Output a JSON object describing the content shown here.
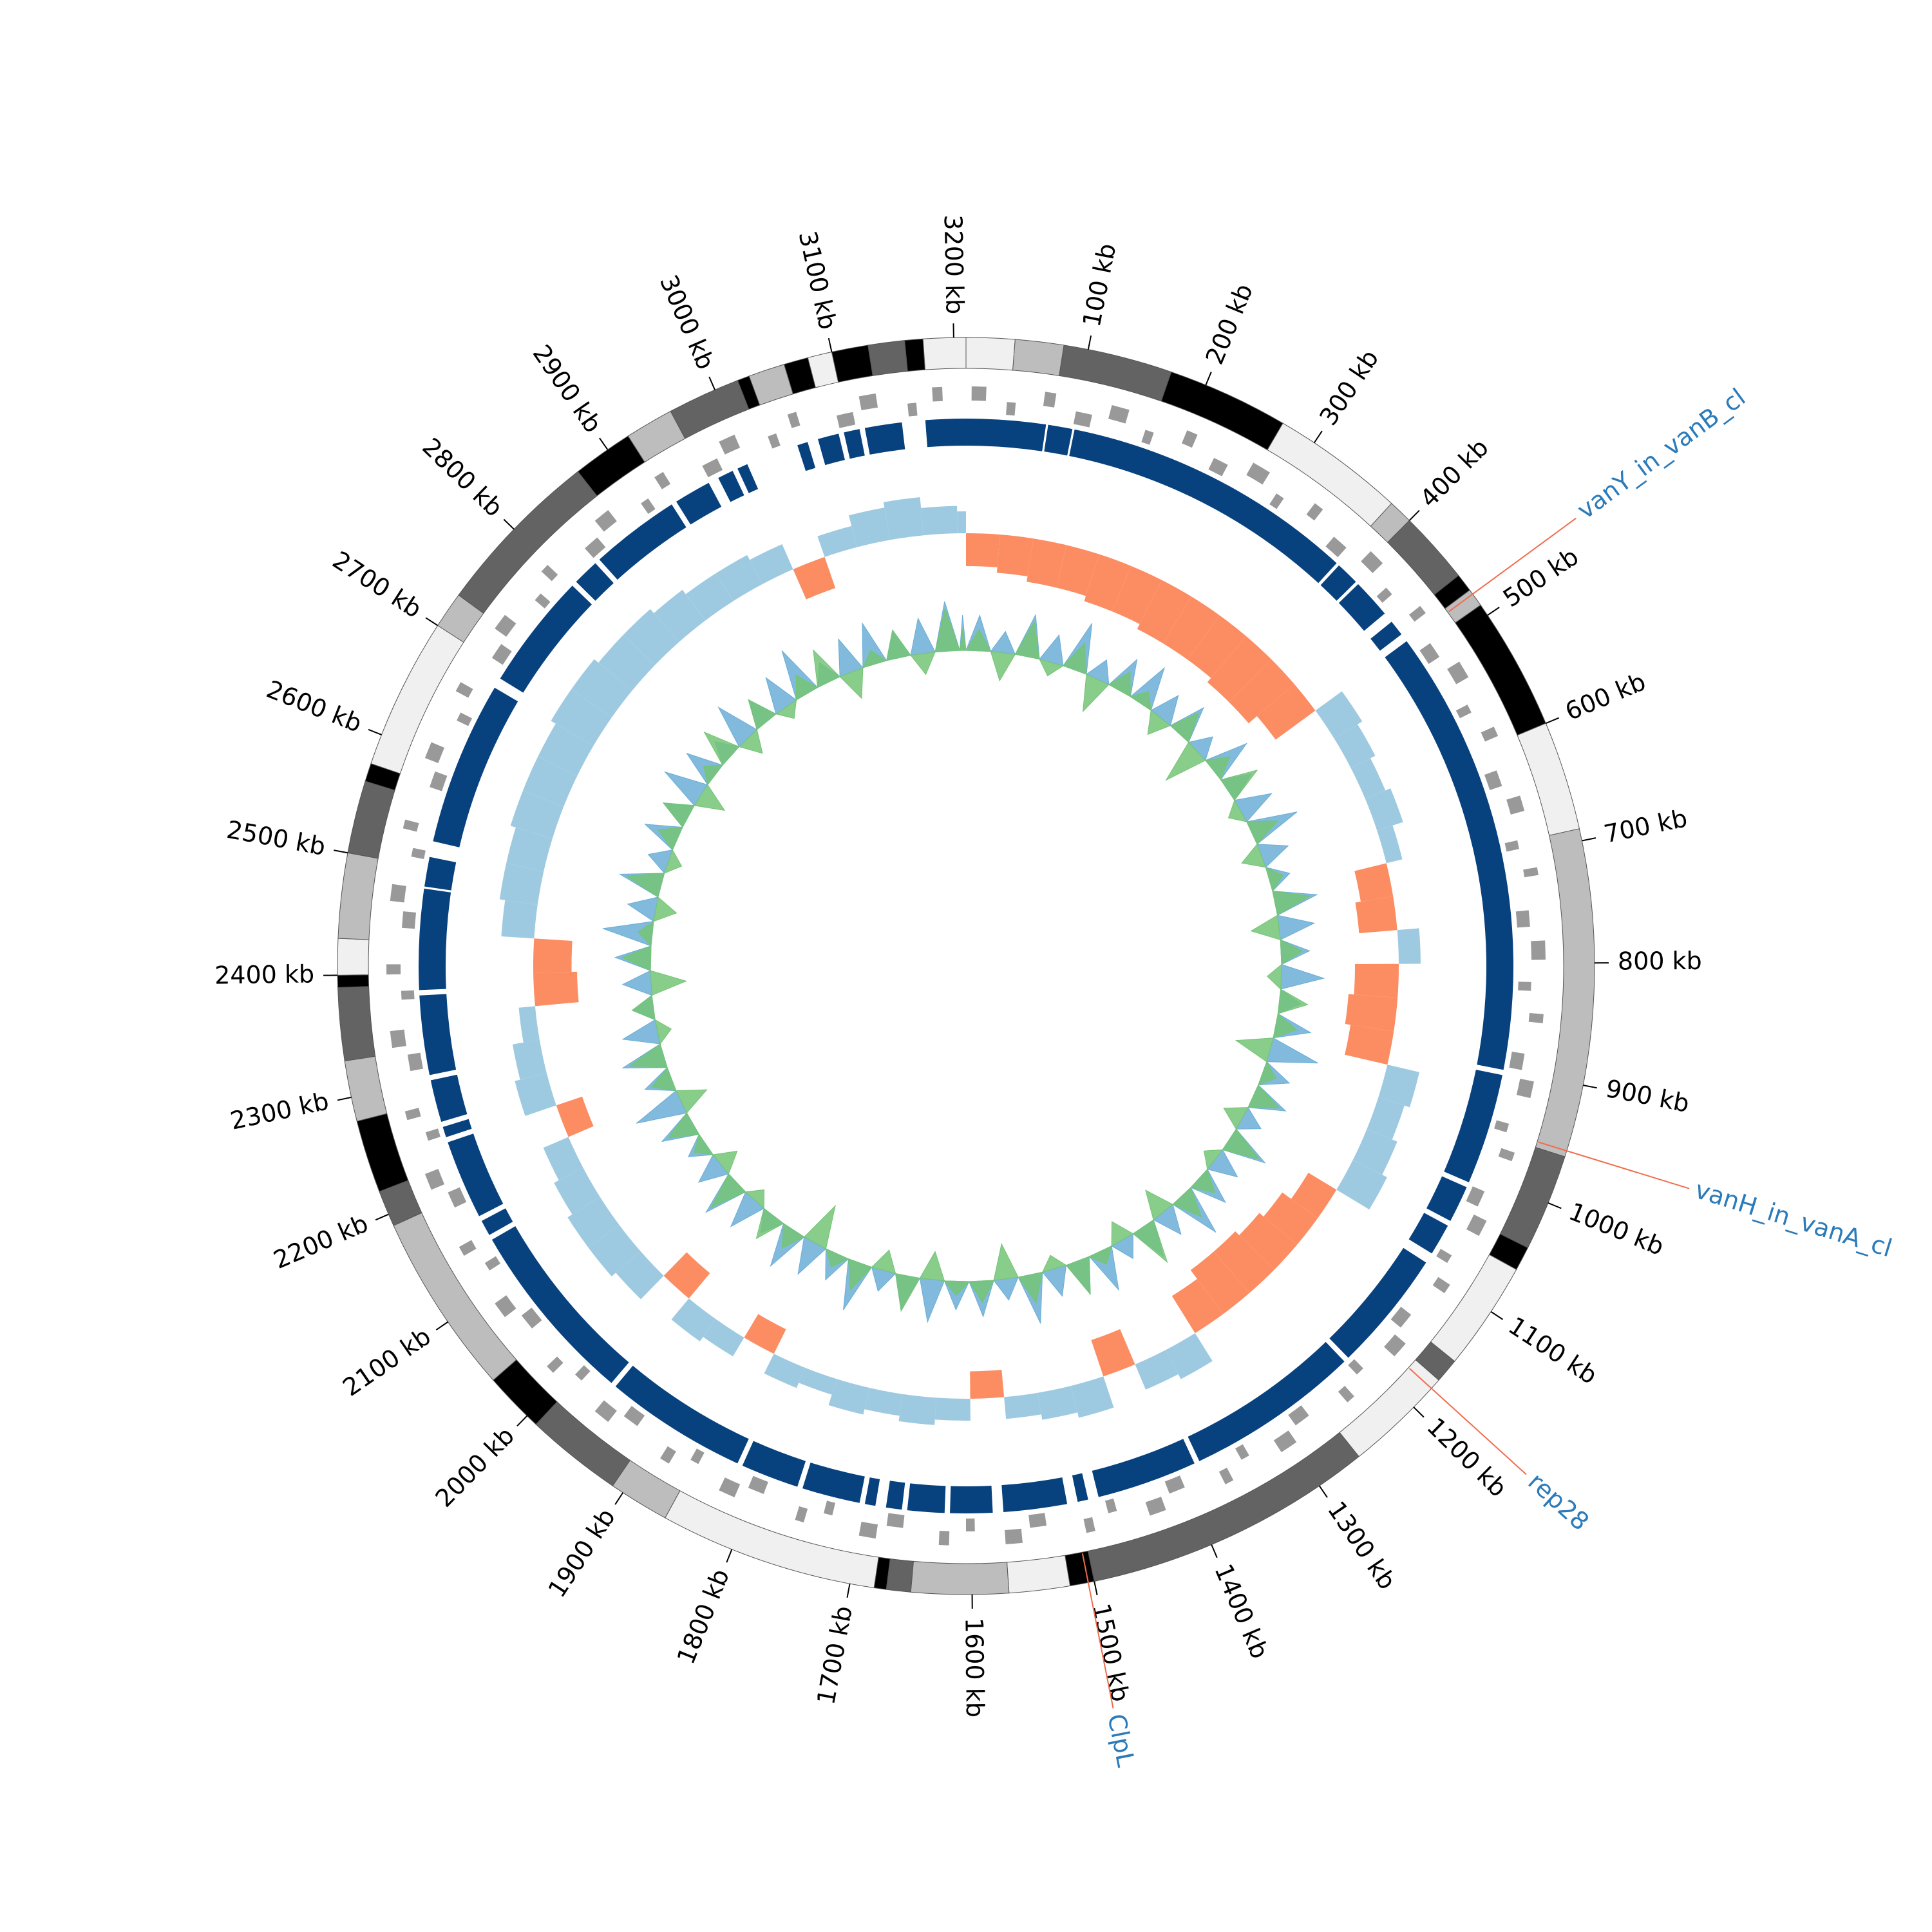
{
  "chart_data": {
    "type": "circular-genome",
    "xlim": [
      0,
      3210
    ],
    "xticks": [
      {
        "value": 100,
        "label": "100 kb"
      },
      {
        "value": 200,
        "label": "200 kb"
      },
      {
        "value": 300,
        "label": "300 kb"
      },
      {
        "value": 400,
        "label": "400 kb"
      },
      {
        "value": 500,
        "label": "500 kb"
      },
      {
        "value": 600,
        "label": "600 kb"
      },
      {
        "value": 700,
        "label": "700 kb"
      },
      {
        "value": 800,
        "label": "800 kb"
      },
      {
        "value": 900,
        "label": "900 kb"
      },
      {
        "value": 1000,
        "label": "1000 kb"
      },
      {
        "value": 1100,
        "label": "1100 kb"
      },
      {
        "value": 1200,
        "label": "1200 kb"
      },
      {
        "value": 1300,
        "label": "1300 kb"
      },
      {
        "value": 1400,
        "label": "1400 kb"
      },
      {
        "value": 1500,
        "label": "1500 kb"
      },
      {
        "value": 1600,
        "label": "1600 kb"
      },
      {
        "value": 1700,
        "label": "1700 kb"
      },
      {
        "value": 1800,
        "label": "1800 kb"
      },
      {
        "value": 1900,
        "label": "1900 kb"
      },
      {
        "value": 2000,
        "label": "2000 kb"
      },
      {
        "value": 2100,
        "label": "2100 kb"
      },
      {
        "value": 2200,
        "label": "2200 kb"
      },
      {
        "value": 2300,
        "label": "2300 kb"
      },
      {
        "value": 2400,
        "label": "2400 kb"
      },
      {
        "value": 2500,
        "label": "2500 kb"
      },
      {
        "value": 2600,
        "label": "2600 kb"
      },
      {
        "value": 2700,
        "label": "2700 kb"
      },
      {
        "value": 2800,
        "label": "2800 kb"
      },
      {
        "value": 2900,
        "label": "2900 kb"
      },
      {
        "value": 3000,
        "label": "3000 kb"
      },
      {
        "value": 3100,
        "label": "3100 kb"
      },
      {
        "value": 3200,
        "label": "3200 kb"
      }
    ],
    "bands": {
      "starts": [
        0,
        40,
        80,
        170,
        270,
        380,
        400,
        460,
        475,
        490,
        600,
        690,
        960,
        1040,
        1060,
        1150,
        1170,
        1260,
        1500,
        1520,
        1570,
        1650,
        1670,
        1680,
        1860,
        1910,
        1990,
        2040,
        2190,
        2220,
        2280,
        2330,
        2390,
        2400,
        2430,
        2500,
        2560,
        2575,
        2700,
        2730,
        2870,
        2920,
        2960,
        3020,
        3030,
        3060,
        3080,
        3100,
        3130,
        3160,
        3175
      ],
      "ends": [
        40,
        80,
        170,
        270,
        380,
        400,
        460,
        475,
        490,
        600,
        690,
        960,
        1040,
        1060,
        1150,
        1170,
        1260,
        1500,
        1520,
        1570,
        1650,
        1670,
        1680,
        1860,
        1910,
        1990,
        2040,
        2190,
        2220,
        2280,
        2330,
        2390,
        2400,
        2430,
        2500,
        2560,
        2575,
        2700,
        2730,
        2870,
        2920,
        2960,
        3020,
        3030,
        3060,
        3080,
        3100,
        3130,
        3160,
        3175,
        3210
      ],
      "colors": [
        "#f0f0f0",
        "#bdbdbd",
        "#636363",
        "#000000",
        "#f0f0f0",
        "#bdbdbd",
        "#636363",
        "#000000",
        "#bdbdbd",
        "#000000",
        "#f0f0f0",
        "#bdbdbd",
        "#636363",
        "#000000",
        "#f0f0f0",
        "#636363",
        "#f0f0f0",
        "#636363",
        "#000000",
        "#f0f0f0",
        "#bdbdbd",
        "#636363",
        "#000000",
        "#f0f0f0",
        "#bdbdbd",
        "#636363",
        "#000000",
        "#bdbdbd",
        "#636363",
        "#000000",
        "#bdbdbd",
        "#636363",
        "#000000",
        "#f0f0f0",
        "#bdbdbd",
        "#636363",
        "#000000",
        "#f0f0f0",
        "#bdbdbd",
        "#636363",
        "#000000",
        "#bdbdbd",
        "#636363",
        "#000000",
        "#bdbdbd",
        "#000000",
        "#f0f0f0",
        "#000000",
        "#636363",
        "#000000",
        "#f0f0f0"
      ]
    },
    "genes_forward": {
      "starts": [
        5,
        70,
        130,
        200,
        265,
        330,
        395,
        460,
        520,
        585,
        650,
        715,
        780,
        845,
        905,
        970,
        1035,
        1100,
        1165,
        1230,
        1295,
        1360,
        1425,
        1490,
        1555,
        1620,
        1685,
        1750,
        1815,
        1880,
        1945,
        2010,
        2075,
        2140,
        2205,
        2270,
        2335,
        2400,
        2465,
        2530,
        2595,
        2660,
        2725,
        2790,
        2855,
        2920,
        2985,
        3050,
        3115,
        3180
      ],
      "ends": [
        18,
        80,
        146,
        210,
        282,
        339,
        410,
        468,
        536,
        594,
        664,
        722,
        797,
        853,
        920,
        978,
        1050,
        1109,
        1180,
        1238,
        1311,
        1368,
        1440,
        1498,
        1570,
        1629,
        1700,
        1758,
        1830,
        1889,
        1960,
        2018,
        2090,
        2149,
        2220,
        2278,
        2350,
        2409,
        2480,
        2538,
        2610,
        2669,
        2740,
        2798,
        2870,
        2929,
        3000,
        3058,
        3130,
        3189
      ],
      "color": "#999999"
    },
    "genes_reverse": {
      "starts": [
        37,
        100,
        165,
        232,
        297,
        362,
        428,
        492,
        557,
        622,
        688,
        752,
        817,
        882,
        947,
        1012,
        1077,
        1142,
        1207,
        1272,
        1337,
        1402,
        1467,
        1532,
        1597,
        1662,
        1727,
        1792,
        1857,
        1922,
        1987,
        2052,
        2117,
        2182,
        2247,
        2312,
        2377,
        2442,
        2507,
        2572,
        2637,
        2702,
        2767,
        2832,
        2897,
        2962,
        3027,
        3092,
        3157
      ],
      "ends": [
        45,
        115,
        173,
        246,
        305,
        377,
        436,
        507,
        565,
        637,
        696,
        767,
        825,
        897,
        955,
        1027,
        1085,
        1157,
        1215,
        1287,
        1345,
        1417,
        1475,
        1547,
        1605,
        1677,
        1735,
        1807,
        1865,
        1937,
        1995,
        2067,
        2125,
        2197,
        2255,
        2327,
        2385,
        2457,
        2515,
        2587,
        2645,
        2717,
        2775,
        2847,
        2905,
        2977,
        3035,
        3107,
        3165
      ],
      "color": "#999999"
    },
    "blocks": {
      "starts": [
        3172,
        0,
        77,
        102,
        383,
        408,
        455,
        478,
        905,
        1015,
        1055,
        1095,
        1215,
        1385,
        1490,
        1510,
        1580,
        1625,
        1665,
        1690,
        1705,
        1765,
        1825,
        1965,
        2145,
        2165,
        2245,
        2260,
        2305,
        2385,
        2482,
        2525,
        2690,
        2805,
        2835,
        2925,
        2970,
        2990,
        3050,
        3070,
        3095,
        3115
      ],
      "ends": [
        3210,
        75,
        100,
        380,
        405,
        445,
        470,
        900,
        1010,
        1050,
        1085,
        1210,
        1380,
        1480,
        1500,
        1570,
        1620,
        1660,
        1680,
        1700,
        1760,
        1820,
        1960,
        2140,
        2160,
        2240,
        2255,
        2300,
        2380,
        2480,
        2510,
        2680,
        2800,
        2830,
        2920,
        2960,
        2985,
        3000,
        3060,
        3090,
        3110,
        3150
      ],
      "color": "#08427e"
    },
    "x": [
      0,
      40,
      80,
      120,
      160,
      200,
      240,
      280,
      320,
      360,
      400,
      440,
      480,
      520,
      560,
      600,
      640,
      680,
      720,
      760,
      800,
      840,
      880,
      920,
      960,
      1000,
      1040,
      1080,
      1120,
      1160,
      1200,
      1240,
      1280,
      1320,
      1360,
      1400,
      1440,
      1480,
      1520,
      1560,
      1600,
      1640,
      1680,
      1720,
      1760,
      1800,
      1840,
      1880,
      1920,
      1960,
      2000,
      2040,
      2080,
      2120,
      2160,
      2200,
      2240,
      2280,
      2320,
      2360,
      2400,
      2440,
      2480,
      2520,
      2560,
      2600,
      2640,
      2680,
      2720,
      2760,
      2800,
      2840,
      2880,
      2920,
      2960,
      3000,
      3040,
      3080,
      3120,
      3160,
      3200
    ],
    "skew": {
      "positive_color": "#9ecae1",
      "negative_color": "#fc8d62",
      "values": [
        -0.06,
        -0.07,
        -0.08,
        -0.08,
        -0.09,
        -0.09,
        -0.1,
        -0.1,
        -0.1,
        -0.11,
        -0.11,
        -0.09,
        0.06,
        0.05,
        0.04,
        0.05,
        0.03,
        -0.06,
        -0.07,
        0.04,
        -0.08,
        -0.09,
        -0.08,
        0.06,
        0.05,
        0.06,
        0.07,
        -0.06,
        -0.08,
        -0.09,
        -0.1,
        -0.1,
        -0.08,
        0.06,
        0.05,
        -0.07,
        0.06,
        0.05,
        0.04,
        -0.05,
        0.04,
        0.05,
        0.04,
        0.05,
        0.03,
        0.04,
        -0.05,
        0.04,
        0.05,
        -0.06,
        0.06,
        0.07,
        0.07,
        0.06,
        0.05,
        -0.05,
        0.06,
        0.05,
        0.03,
        -0.08,
        -0.07,
        0.06,
        0.07,
        0.07,
        0.08,
        0.08,
        0.08,
        0.09,
        0.09,
        0.08,
        0.08,
        0.07,
        0.06,
        0.06,
        0.05,
        -0.06,
        0.04,
        0.06,
        0.07,
        0.05,
        0.04
      ]
    },
    "gc": {
      "series": [
        {
          "color": "#6baed6",
          "values": [
            0.05,
            0.03,
            0.06,
            0.04,
            0.07,
            0.03,
            0.05,
            0.06,
            0.04,
            0.05,
            0.03,
            0.06,
            0.04,
            0.05,
            0.07,
            0.04,
            0.03,
            0.06,
            0.05,
            0.04,
            0.06,
            0.03,
            0.05,
            0.07,
            0.04,
            0.05,
            0.03,
            0.06,
            0.04,
            0.05,
            0.07,
            0.04,
            0.05,
            0.03,
            0.06,
            0.05,
            0.04,
            0.07,
            0.03,
            0.05,
            0.04,
            0.06,
            0.05,
            0.03,
            0.07,
            0.04,
            0.05,
            0.06,
            0.03,
            0.05,
            0.06,
            0.04,
            0.03,
            0.05,
            0.07,
            0.04,
            0.06,
            0.05,
            0.03,
            0.04,
            0.05,
            0.07,
            0.04,
            0.06,
            0.03,
            0.05,
            0.04,
            0.06,
            0.05,
            0.03,
            0.06,
            0.04,
            0.05,
            0.07,
            0.03,
            0.05,
            0.06,
            0.04,
            0.05,
            0.07,
            0.05
          ]
        },
        {
          "color": "#74c476",
          "values": [
            0.03,
            -0.04,
            0.05,
            -0.02,
            0.04,
            -0.05,
            0.03,
            0.02,
            -0.03,
            0.04,
            -0.06,
            0.03,
            0.05,
            -0.02,
            0.04,
            -0.03,
            0.02,
            0.05,
            -0.04,
            0.03,
            -0.02,
            0.04,
            0.03,
            -0.05,
            0.02,
            0.04,
            -0.03,
            0.05,
            -0.02,
            0.03,
            0.04,
            -0.04,
            0.06,
            -0.03,
            0.02,
            0.05,
            -0.02,
            0.04,
            -0.05,
            0.03,
            0.02,
            -0.04,
            0.05,
            -0.03,
            0.04,
            0.02,
            -0.06,
            0.03,
            0.04,
            -0.02,
            0.05,
            -0.03,
            0.02,
            0.04,
            -0.04,
            0.03,
            0.05,
            -0.02,
            0.03,
            -0.05,
            0.04,
            0.02,
            -0.03,
            0.05,
            -0.02,
            0.03,
            0.04,
            -0.04,
            0.02,
            0.05,
            -0.03,
            0.04,
            -0.02,
            0.03,
            0.05,
            -0.04,
            0.02,
            0.04,
            -0.03,
            0.06,
            0.03
          ]
        }
      ]
    },
    "annotations": [
      {
        "label": "vanY_in_vanB_cl",
        "position": 479
      },
      {
        "label": "vanH_in_vanA_cl",
        "position": 955
      },
      {
        "label": "rep28",
        "position": 1179
      },
      {
        "label": "ClpL",
        "position": 1505
      }
    ],
    "annotation_color": "#2b7bba",
    "leader_color": "#f26b4c"
  }
}
